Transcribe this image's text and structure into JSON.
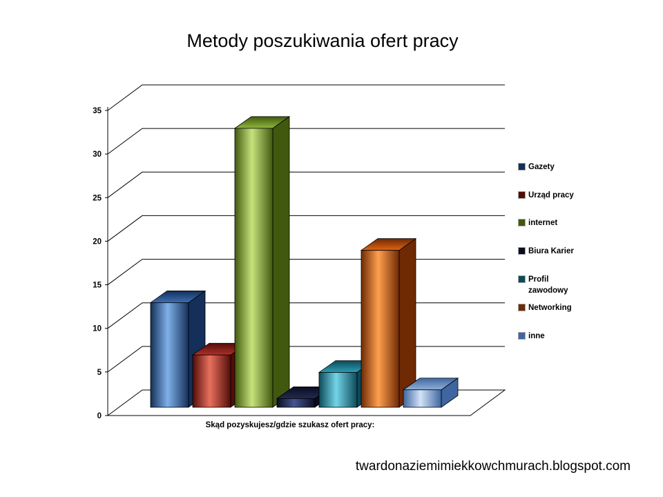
{
  "page": {
    "footer": "twardonaziemimiekkowchmurach.blogspot.com"
  },
  "chart_data": {
    "type": "bar",
    "style": "3d-perspective",
    "title": "Metody poszukiwania ofert pracy",
    "xlabel": "Skąd pozyskujesz/gdzie szukasz ofert pracy:",
    "ylabel": "",
    "ylim": [
      0,
      35
    ],
    "yticks": [
      0,
      5,
      10,
      15,
      20,
      25,
      30,
      35
    ],
    "grid": true,
    "legend_position": "right",
    "categories": [
      "Gazety",
      "Urząd pracy",
      "internet",
      "Biura Karier",
      "Profil zawodowy",
      "Networking",
      "inne"
    ],
    "values": [
      12,
      6,
      32,
      1,
      4,
      18,
      2
    ],
    "colors": [
      {
        "light": "#7fb0e8",
        "mid": "#3b6fb5",
        "dark": "#14305a"
      },
      {
        "light": "#e8705e",
        "mid": "#b03028",
        "dark": "#520d08"
      },
      {
        "light": "#c6e37d",
        "mid": "#8fb73e",
        "dark": "#41590f"
      },
      {
        "light": "#46548f",
        "mid": "#232a52",
        "dark": "#0a0d1f"
      },
      {
        "light": "#72d4e8",
        "mid": "#2c9db5",
        "dark": "#0d4a59"
      },
      {
        "light": "#ffa050",
        "mid": "#e26412",
        "dark": "#6e2a04"
      },
      {
        "light": "#d2e3f7",
        "mid": "#8fb0d8",
        "dark": "#3f66a0"
      }
    ]
  }
}
